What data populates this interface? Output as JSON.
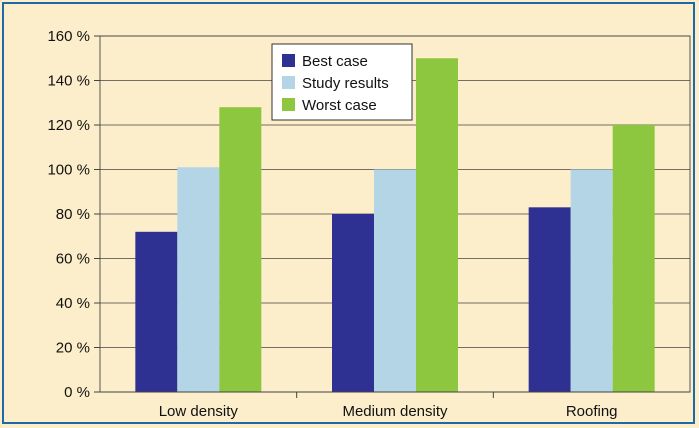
{
  "chart_data": {
    "type": "bar",
    "title": "",
    "xlabel": "",
    "ylabel": "",
    "categories": [
      "Low density",
      "Medium density",
      "Roofing"
    ],
    "series": [
      {
        "name": "Best case",
        "values": [
          72,
          80,
          83
        ],
        "color": "#2e3192"
      },
      {
        "name": "Study results",
        "values": [
          101,
          100,
          100
        ],
        "color": "#b3d5e6"
      },
      {
        "name": "Worst case",
        "values": [
          128,
          150,
          120
        ],
        "color": "#8dc63f"
      }
    ],
    "ylim": [
      0,
      160
    ],
    "yticks": [
      0,
      20,
      40,
      60,
      80,
      100,
      120,
      140,
      160
    ],
    "ytick_suffix": " %",
    "grid": true,
    "legend_position": "top-center",
    "background_color": "#fdeecb",
    "border_color": "#1d6aa6"
  }
}
